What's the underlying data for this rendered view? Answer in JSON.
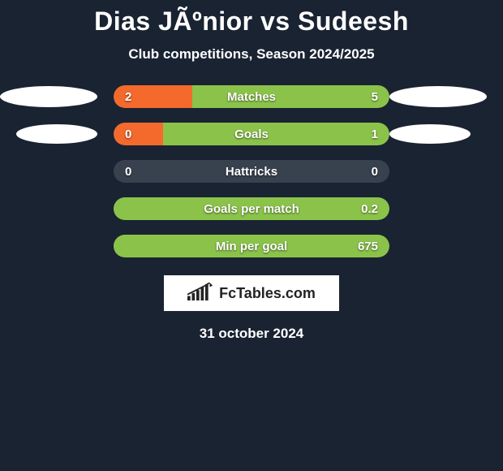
{
  "title": "Dias JÃºnior vs Sudeesh",
  "subtitle": "Club competitions, Season 2024/2025",
  "date": "31 october 2024",
  "branding": "FcTables.com",
  "colors": {
    "background": "#1a2332",
    "track": "#38424f",
    "left": "#f46a2c",
    "right": "#8bc34a",
    "text_shadow": "rgba(0,0,0,0.6)"
  },
  "bars": [
    {
      "label": "Matches",
      "left_value": "2",
      "right_value": "5",
      "left_pct": 28.5,
      "right_pct": 71.5,
      "ellipses": "big"
    },
    {
      "label": "Goals",
      "left_value": "0",
      "right_value": "1",
      "left_pct": 18,
      "right_pct": 82,
      "ellipses": "small"
    },
    {
      "label": "Hattricks",
      "left_value": "0",
      "right_value": "0",
      "left_pct": 0,
      "right_pct": 0,
      "ellipses": "none"
    },
    {
      "label": "Goals per match",
      "left_value": "",
      "right_value": "0.2",
      "left_pct": 0,
      "right_pct": 100,
      "ellipses": "none"
    },
    {
      "label": "Min per goal",
      "left_value": "",
      "right_value": "675",
      "left_pct": 0,
      "right_pct": 100,
      "ellipses": "none"
    }
  ]
}
